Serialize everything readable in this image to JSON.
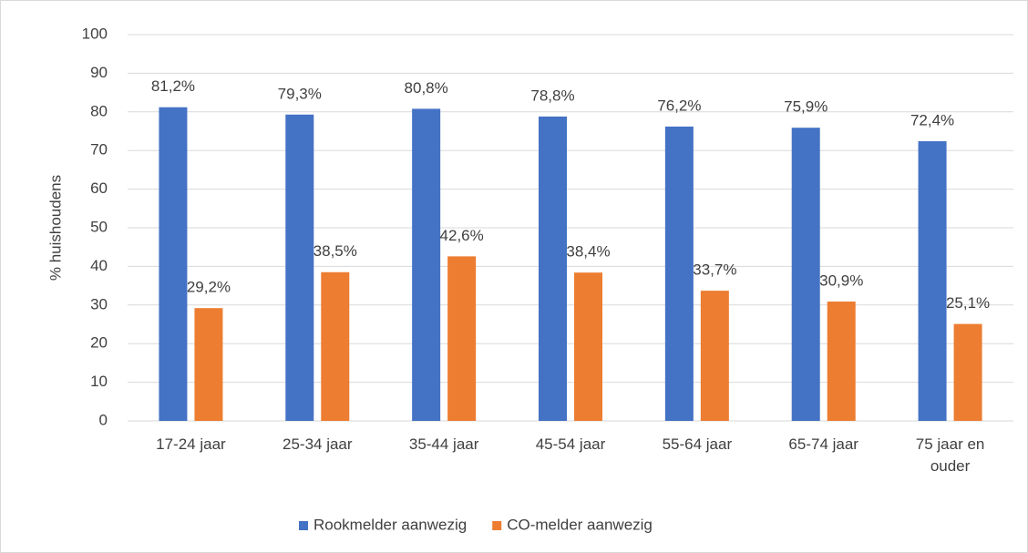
{
  "chart_data": {
    "type": "bar",
    "categories": [
      "17-24 jaar",
      "25-34 jaar",
      "35-44 jaar",
      "45-54 jaar",
      "55-64 jaar",
      "65-74 jaar",
      "75 jaar en ouder"
    ],
    "series": [
      {
        "name": "Rookmelder aanwezig",
        "color": "#4472c4",
        "values": [
          81.2,
          79.3,
          80.8,
          78.8,
          76.2,
          75.9,
          72.4
        ],
        "value_labels": [
          "81,2%",
          "79,3%",
          "80,8%",
          "78,8%",
          "76,2%",
          "75,9%",
          "72,4%"
        ]
      },
      {
        "name": "CO-melder aanwezig",
        "color": "#ed7d31",
        "values": [
          29.2,
          38.5,
          42.6,
          38.4,
          33.7,
          30.9,
          25.1
        ],
        "value_labels": [
          "29,2%",
          "38,5%",
          "42,6%",
          "38,4%",
          "33,7%",
          "30,9%",
          "25,1%"
        ]
      }
    ],
    "y_label": "% huishoudens",
    "ylim": [
      0,
      100
    ],
    "yticks": [
      0,
      10,
      20,
      30,
      40,
      50,
      60,
      70,
      80,
      90,
      100
    ],
    "grid": true,
    "legend": "bottom"
  }
}
